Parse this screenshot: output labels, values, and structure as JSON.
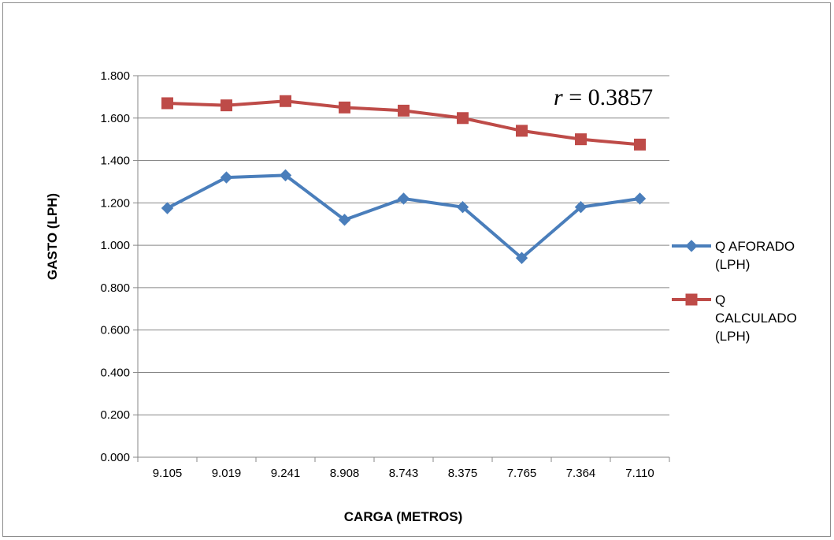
{
  "chart_data": {
    "type": "line",
    "title": "",
    "xlabel": "CARGA (METROS)",
    "ylabel": "GASTO (LPH)",
    "categories": [
      "9.105",
      "9.019",
      "9.241",
      "8.908",
      "8.743",
      "8.375",
      "7.765",
      "7.364",
      "7.110"
    ],
    "ylim": [
      0,
      1.8
    ],
    "yticks": [
      "0.000",
      "0.200",
      "0.400",
      "0.600",
      "0.800",
      "1.000",
      "1.200",
      "1.400",
      "1.600",
      "1.800"
    ],
    "grid": true,
    "legend_position": "right",
    "series": [
      {
        "name": "Q AFORADO (LPH)",
        "legend_lines": [
          "Q AFORADO",
          "(LPH)"
        ],
        "color": "#4a7ebb",
        "marker": "diamond",
        "values": [
          1.175,
          1.32,
          1.33,
          1.12,
          1.22,
          1.18,
          0.94,
          1.18,
          1.22
        ]
      },
      {
        "name": "Q CALCULADO (LPH)",
        "legend_lines": [
          "Q",
          "CALCULADO",
          "(LPH)"
        ],
        "color": "#be4b48",
        "marker": "square",
        "values": [
          1.67,
          1.66,
          1.68,
          1.65,
          1.635,
          1.6,
          1.54,
          1.5,
          1.475
        ]
      }
    ],
    "annotation": {
      "text_var": "r",
      "text_rest": " = 0.3857"
    }
  }
}
